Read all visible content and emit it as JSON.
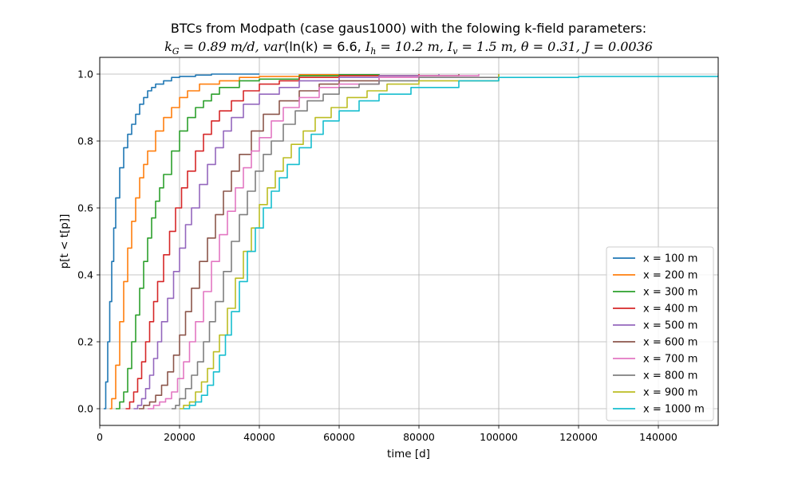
{
  "chart_data": {
    "type": "line",
    "title": "BTCs from Modpath (case gaus1000) with the folowing k-field parameters:",
    "subtitle": "k_G = 0.89 m/d, var(ln(k) = 6.6, I_h = 10.2 m, I_v = 1.5 m, θ = 0.31, J = 0.0036",
    "subtitle_parts": {
      "kg_sym": "k",
      "kg_sub": "G",
      "kg_val": " = 0.89 m/d, ",
      "var_sym": "var",
      "var_val": "(ln(k) = 6.6, ",
      "ih_sym": "I",
      "ih_sub": "h",
      "ih_val": " = 10.2 m, ",
      "iv_sym": "I",
      "iv_sub": "v",
      "iv_val": " = 1.5 m, ",
      "theta_sym": "θ",
      "theta_val": " = 0.31, ",
      "j_sym": "J",
      "j_val": " = 0.0036"
    },
    "xlabel": "time [d]",
    "ylabel": "p[t < t[p]]",
    "xlim": [
      0,
      155000
    ],
    "ylim": [
      -0.05,
      1.05
    ],
    "xticks": [
      0,
      20000,
      40000,
      60000,
      80000,
      100000,
      120000,
      140000
    ],
    "yticks": [
      0.0,
      0.2,
      0.4,
      0.6,
      0.8,
      1.0
    ],
    "grid": true,
    "legend_position": "lower-right",
    "series": [
      {
        "name": "x = 100 m",
        "color": "#1f77b4",
        "x": [
          1000,
          1500,
          2000,
          2500,
          3000,
          3500,
          4000,
          5000,
          6000,
          7000,
          8000,
          9000,
          10000,
          11000,
          12000,
          13000,
          14000,
          16000,
          18000,
          20000,
          24000,
          28000,
          40000
        ],
        "y": [
          0.0,
          0.08,
          0.2,
          0.32,
          0.44,
          0.54,
          0.63,
          0.72,
          0.78,
          0.82,
          0.85,
          0.88,
          0.91,
          0.93,
          0.95,
          0.96,
          0.97,
          0.98,
          0.99,
          0.993,
          0.997,
          1.0,
          1.0
        ]
      },
      {
        "name": "x = 200 m",
        "color": "#ff7f0e",
        "x": [
          2500,
          3000,
          4000,
          5000,
          6000,
          7000,
          8000,
          9000,
          10000,
          11000,
          12000,
          14000,
          16000,
          18000,
          20000,
          22000,
          25000,
          30000,
          35000,
          40000,
          50000,
          60000
        ],
        "y": [
          0.0,
          0.03,
          0.13,
          0.26,
          0.38,
          0.48,
          0.56,
          0.63,
          0.69,
          0.73,
          0.77,
          0.83,
          0.87,
          0.9,
          0.93,
          0.95,
          0.97,
          0.98,
          0.99,
          0.993,
          0.998,
          1.0
        ]
      },
      {
        "name": "x = 300 m",
        "color": "#2ca02c",
        "x": [
          4000,
          5000,
          6000,
          7000,
          8000,
          9000,
          10000,
          11000,
          12000,
          13000,
          14000,
          15000,
          16000,
          18000,
          20000,
          22000,
          24000,
          26000,
          28000,
          30000,
          35000,
          40000,
          50000,
          60000,
          70000
        ],
        "y": [
          0.0,
          0.02,
          0.05,
          0.12,
          0.2,
          0.28,
          0.36,
          0.44,
          0.51,
          0.57,
          0.62,
          0.66,
          0.7,
          0.77,
          0.83,
          0.87,
          0.9,
          0.92,
          0.94,
          0.96,
          0.98,
          0.985,
          0.995,
          0.998,
          1.0
        ]
      },
      {
        "name": "x = 400 m",
        "color": "#d62728",
        "x": [
          6500,
          7500,
          8500,
          9500,
          10500,
          11500,
          12500,
          13500,
          14500,
          16000,
          17500,
          19000,
          20500,
          22000,
          24000,
          26000,
          28000,
          30000,
          33000,
          36000,
          40000,
          45000,
          50000,
          60000,
          80000
        ],
        "y": [
          0.0,
          0.02,
          0.05,
          0.09,
          0.14,
          0.2,
          0.26,
          0.32,
          0.38,
          0.46,
          0.53,
          0.6,
          0.66,
          0.71,
          0.77,
          0.82,
          0.86,
          0.89,
          0.92,
          0.95,
          0.97,
          0.98,
          0.99,
          0.995,
          1.0
        ]
      },
      {
        "name": "x = 500 m",
        "color": "#9467bd",
        "x": [
          8500,
          9500,
          10500,
          11500,
          12500,
          13500,
          14500,
          15500,
          17000,
          18500,
          20000,
          21500,
          23000,
          25000,
          27000,
          29000,
          31000,
          33000,
          36000,
          40000,
          45000,
          50000,
          60000,
          70000,
          85000
        ],
        "y": [
          0.0,
          0.01,
          0.03,
          0.06,
          0.1,
          0.15,
          0.2,
          0.26,
          0.33,
          0.41,
          0.48,
          0.55,
          0.6,
          0.67,
          0.73,
          0.78,
          0.83,
          0.87,
          0.91,
          0.94,
          0.96,
          0.98,
          0.99,
          0.995,
          1.0
        ]
      },
      {
        "name": "x = 600 m",
        "color": "#8c564b",
        "x": [
          9800,
          11000,
          12500,
          14000,
          15500,
          17000,
          18500,
          20000,
          21500,
          23000,
          25000,
          27000,
          29000,
          31000,
          33000,
          35000,
          38000,
          41000,
          45000,
          50000,
          55000,
          60000,
          70000,
          80000,
          90000
        ],
        "y": [
          0.0,
          0.01,
          0.02,
          0.04,
          0.07,
          0.11,
          0.16,
          0.22,
          0.29,
          0.36,
          0.44,
          0.51,
          0.58,
          0.65,
          0.71,
          0.76,
          0.83,
          0.88,
          0.92,
          0.95,
          0.97,
          0.98,
          0.99,
          0.995,
          1.0
        ]
      },
      {
        "name": "x = 700 m",
        "color": "#e377c2",
        "x": [
          12000,
          13500,
          15000,
          16500,
          18000,
          19500,
          21000,
          22500,
          24000,
          26000,
          28000,
          30000,
          32000,
          34000,
          36000,
          38000,
          40000,
          43000,
          46000,
          50000,
          55000,
          60000,
          70000,
          80000,
          95000
        ],
        "y": [
          0.0,
          0.01,
          0.02,
          0.03,
          0.05,
          0.09,
          0.14,
          0.2,
          0.26,
          0.35,
          0.44,
          0.52,
          0.59,
          0.66,
          0.72,
          0.77,
          0.81,
          0.86,
          0.9,
          0.93,
          0.96,
          0.97,
          0.99,
          0.995,
          1.0
        ]
      },
      {
        "name": "x = 800 m",
        "color": "#7f7f7f",
        "x": [
          18000,
          19000,
          20000,
          21500,
          23000,
          24500,
          26000,
          27500,
          29000,
          31000,
          33000,
          35000,
          37000,
          39000,
          41000,
          43000,
          46000,
          49000,
          52000,
          56000,
          60000,
          65000,
          70000,
          80000,
          100000
        ],
        "y": [
          0.0,
          0.01,
          0.03,
          0.06,
          0.1,
          0.14,
          0.2,
          0.26,
          0.32,
          0.41,
          0.5,
          0.58,
          0.65,
          0.71,
          0.76,
          0.8,
          0.85,
          0.89,
          0.92,
          0.94,
          0.96,
          0.97,
          0.98,
          0.99,
          1.0
        ]
      },
      {
        "name": "x = 900 m",
        "color": "#bcbd22",
        "x": [
          20000,
          21000,
          22500,
          24000,
          25500,
          27000,
          28500,
          30000,
          32000,
          34000,
          36000,
          38000,
          40000,
          42000,
          44000,
          46000,
          48000,
          51000,
          54000,
          58000,
          62000,
          67000,
          72000,
          80000,
          100000
        ],
        "y": [
          0.0,
          0.01,
          0.02,
          0.05,
          0.08,
          0.12,
          0.17,
          0.22,
          0.3,
          0.39,
          0.47,
          0.54,
          0.61,
          0.66,
          0.71,
          0.75,
          0.79,
          0.83,
          0.87,
          0.9,
          0.93,
          0.95,
          0.97,
          0.98,
          1.0
        ]
      },
      {
        "name": "x = 1000 m",
        "color": "#17becf",
        "x": [
          21000,
          22500,
          24000,
          25500,
          27000,
          28500,
          30000,
          31500,
          33000,
          35000,
          37000,
          39000,
          41000,
          43000,
          45000,
          47000,
          50000,
          53000,
          56000,
          60000,
          65000,
          70000,
          78000,
          90000,
          100000,
          120000,
          155000
        ],
        "y": [
          0.0,
          0.01,
          0.02,
          0.04,
          0.07,
          0.11,
          0.16,
          0.22,
          0.29,
          0.38,
          0.47,
          0.54,
          0.6,
          0.65,
          0.69,
          0.73,
          0.78,
          0.82,
          0.86,
          0.89,
          0.92,
          0.94,
          0.96,
          0.98,
          0.99,
          0.993,
          0.996
        ]
      }
    ]
  }
}
